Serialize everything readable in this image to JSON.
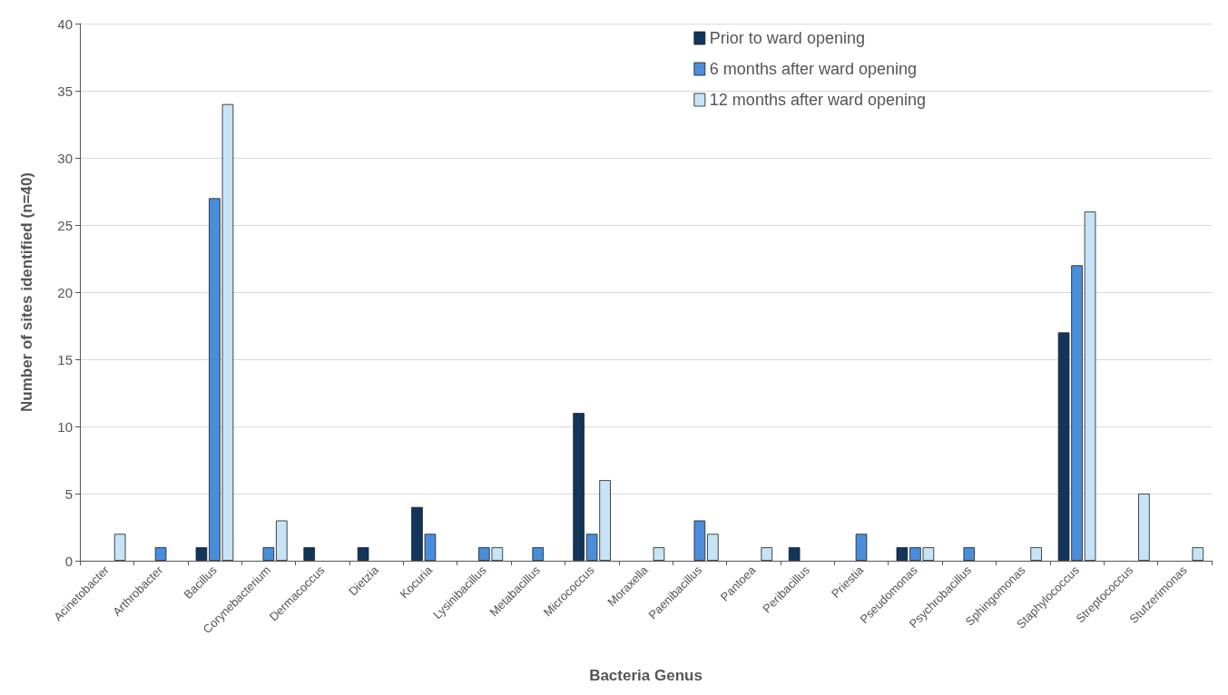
{
  "chart_data": {
    "type": "bar",
    "xlabel": "Bacteria Genus",
    "ylabel": "Number of sites identified (n=40)",
    "categories": [
      "Acinetobacter",
      "Arthrobacter",
      "Bacillus",
      "Corynebacterium",
      "Dermacoccus",
      "Dietzia",
      "Kocuria",
      "Lysinibacillus",
      "Metabacillus",
      "Micrococcus",
      "Moraxella",
      "Paenibacillus",
      "Pantoea",
      "Peribacillus",
      "Priestia",
      "Pseudomonas",
      "Psychrobacillus",
      "Sphingomonas",
      "Staphylococcus",
      "Streptococcus",
      "Stutzerimonas"
    ],
    "series": [
      {
        "name": "Prior to ward opening",
        "color": "#12355b",
        "values": [
          0,
          0,
          1,
          0,
          1,
          1,
          4,
          0,
          0,
          11,
          0,
          0,
          0,
          1,
          0,
          1,
          0,
          0,
          17,
          0,
          0
        ]
      },
      {
        "name": "6 months after ward opening",
        "color": "#4a8edb",
        "values": [
          0,
          1,
          27,
          1,
          0,
          0,
          2,
          1,
          1,
          2,
          0,
          3,
          0,
          0,
          2,
          1,
          1,
          0,
          22,
          0,
          0
        ]
      },
      {
        "name": "12 months after ward opening",
        "color": "#c6e4f5",
        "values": [
          2,
          0,
          34,
          3,
          0,
          0,
          0,
          1,
          0,
          6,
          1,
          2,
          1,
          0,
          0,
          1,
          0,
          1,
          26,
          5,
          1
        ]
      }
    ],
    "ylim": [
      0,
      40
    ],
    "yticks": [
      0,
      5,
      10,
      15,
      20,
      25,
      30,
      35,
      40
    ],
    "grid": "y",
    "legend": "top right"
  }
}
